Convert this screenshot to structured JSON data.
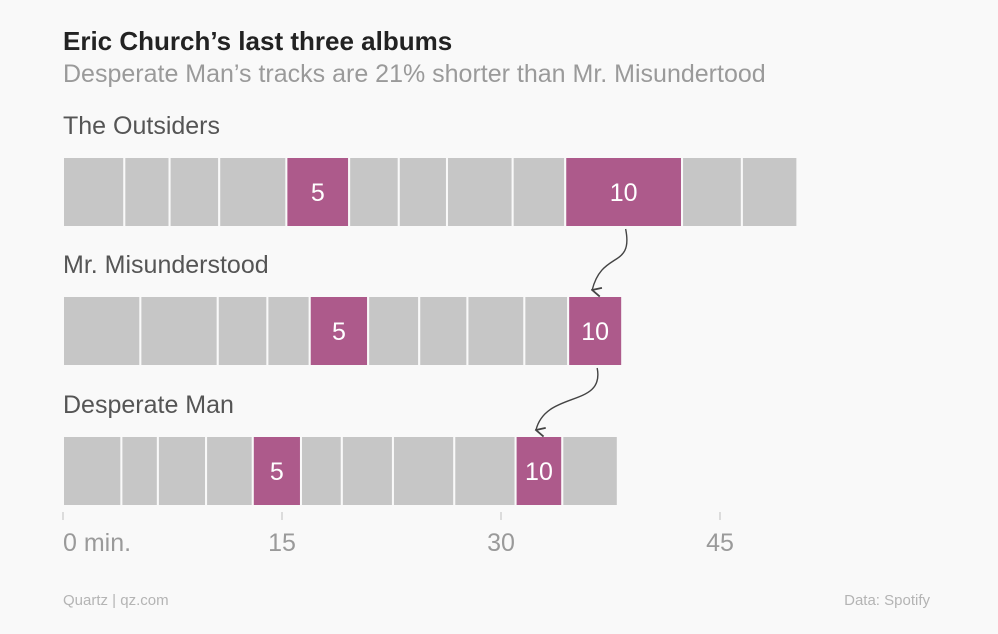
{
  "title": "Eric Church’s last three albums",
  "subtitle": "Desperate Man’s tracks are 21% shorter than Mr. Misundertood",
  "footer": {
    "source_left": "Quartz | qz.com",
    "source_right": "Data: Spotify"
  },
  "colors": {
    "track": "#c6c6c6",
    "highlight": "#ad5a8b",
    "track_border": "#f9f9f9",
    "text": "#555555",
    "axis_text": "#9a9a9a",
    "arrow": "#444444"
  },
  "chart_data": {
    "type": "bar",
    "orientation": "horizontal",
    "stacked": true,
    "xlabel": "",
    "x_unit": "min.",
    "x_ticks": [
      0,
      15,
      30,
      45
    ],
    "x_tick_labels": [
      "0 min.",
      "15",
      "30",
      "45"
    ],
    "xlim": [
      0,
      58
    ],
    "highlighted_tracks": [
      5,
      10
    ],
    "albums": [
      {
        "name": "The Outsiders",
        "track_durations_min": [
          4.2,
          3.1,
          3.4,
          4.6,
          4.3,
          3.4,
          3.3,
          4.5,
          3.6,
          8.0,
          4.1,
          3.8
        ]
      },
      {
        "name": "Mr. Misunderstood",
        "track_durations_min": [
          5.3,
          5.3,
          3.4,
          2.9,
          4.0,
          3.5,
          3.3,
          3.9,
          3.0,
          3.7
        ]
      },
      {
        "name": "Desperate Man",
        "track_durations_min": [
          4.0,
          2.5,
          3.3,
          3.2,
          3.3,
          2.8,
          3.5,
          4.2,
          4.2,
          3.2,
          3.8
        ]
      }
    ],
    "annotations": [
      {
        "from_album": "The Outsiders",
        "to_album": "Mr. Misunderstood",
        "track": 10
      },
      {
        "from_album": "Mr. Misunderstood",
        "to_album": "Desperate Man",
        "track": 10
      }
    ]
  }
}
